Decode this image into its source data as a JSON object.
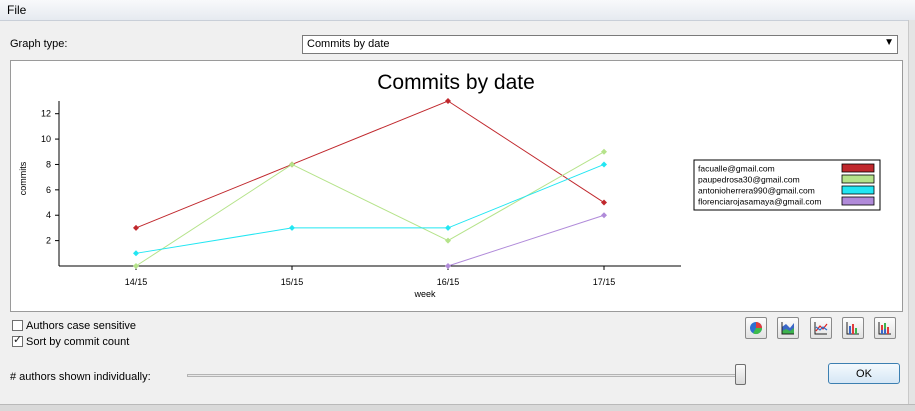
{
  "menubar": {
    "file_label": "File"
  },
  "graph_type": {
    "label": "Graph type:",
    "selected": "Commits by date"
  },
  "chart_data": {
    "type": "line",
    "title": "Commits by date",
    "xlabel": "week",
    "ylabel": "commits",
    "categories": [
      "14/15",
      "15/15",
      "16/15",
      "17/15"
    ],
    "yticks": [
      2,
      4,
      6,
      8,
      10,
      12
    ],
    "ylim": [
      0,
      13
    ],
    "grid": false,
    "legend_position": "right",
    "series": [
      {
        "name": "facualle@gmail.com",
        "color": "#c0282d",
        "values": [
          3,
          8,
          13,
          5
        ]
      },
      {
        "name": "paupedrosa30@gmail.com",
        "color": "#b5e38a",
        "values": [
          0,
          8,
          2,
          9
        ]
      },
      {
        "name": "antonioherrera990@gmail.com",
        "color": "#22e6f2",
        "values": [
          1,
          3,
          3,
          8
        ]
      },
      {
        "name": "florenciarojasamaya@gmail.com",
        "color": "#b08ad9",
        "values": [
          null,
          null,
          0,
          4
        ]
      }
    ]
  },
  "options": {
    "case_sensitive_label": "Authors case sensitive",
    "case_sensitive_checked": false,
    "sort_label": "Sort by commit count",
    "sort_checked": true,
    "check_mark": "✓"
  },
  "chart_buttons": [
    "pie-chart-icon",
    "area-chart-icon",
    "line-chart-icon",
    "bar-chart-icon",
    "stacked-bar-chart-icon"
  ],
  "slider": {
    "label": "# authors shown individually:",
    "value_fraction": 1.0
  },
  "ok_label": "OK"
}
